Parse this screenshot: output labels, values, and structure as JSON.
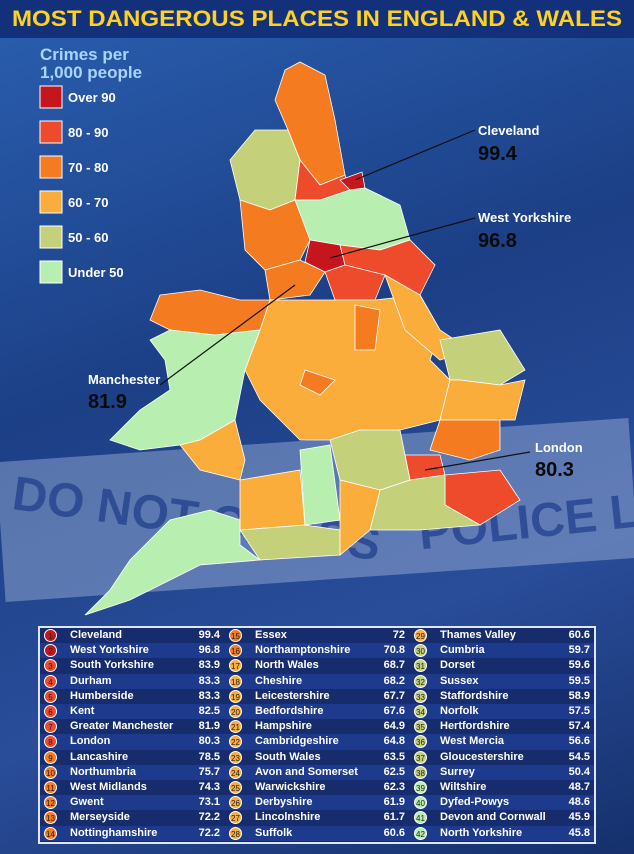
{
  "title": "MOST DANGEROUS PLACES IN ENGLAND & WALES",
  "background_text": [
    "DO NOT CROSS",
    "POLICE LINE"
  ],
  "legend": {
    "title_lines": [
      "Crimes per",
      "1,000 people"
    ],
    "items": [
      {
        "label": "Over 90",
        "color": "#c4161c"
      },
      {
        "label": "80 - 90",
        "color": "#ee4a2c"
      },
      {
        "label": "70 - 80",
        "color": "#f57b20"
      },
      {
        "label": "60 - 70",
        "color": "#fbad3c"
      },
      {
        "label": "50 - 60",
        "color": "#c5d17a"
      },
      {
        "label": "Under 50",
        "color": "#b8eeb0"
      }
    ]
  },
  "callouts": [
    {
      "name": "Cleveland",
      "value": "99.4"
    },
    {
      "name": "West Yorkshire",
      "value": "96.8"
    },
    {
      "name": "Manchester",
      "value": "81.9"
    },
    {
      "name": "London",
      "value": "80.3"
    }
  ],
  "table": {
    "rows": [
      {
        "rank": 1,
        "name": "Cleveland",
        "value": "99.4",
        "color": "#c4161c"
      },
      {
        "rank": 2,
        "name": "West Yorkshire",
        "value": "96.8",
        "color": "#c4161c"
      },
      {
        "rank": 3,
        "name": "South Yorkshire",
        "value": "83.9",
        "color": "#ee4a2c"
      },
      {
        "rank": 4,
        "name": "Durham",
        "value": "83.3",
        "color": "#ee4a2c"
      },
      {
        "rank": 5,
        "name": "Humberside",
        "value": "83.3",
        "color": "#ee4a2c"
      },
      {
        "rank": 6,
        "name": "Kent",
        "value": "82.5",
        "color": "#ee4a2c"
      },
      {
        "rank": 7,
        "name": "Greater Manchester",
        "value": "81.9",
        "color": "#ee4a2c"
      },
      {
        "rank": 8,
        "name": "London",
        "value": "80.3",
        "color": "#ee4a2c"
      },
      {
        "rank": 9,
        "name": "Lancashire",
        "value": "78.5",
        "color": "#f57b20"
      },
      {
        "rank": 10,
        "name": "Northumbria",
        "value": "75.7",
        "color": "#f57b20"
      },
      {
        "rank": 11,
        "name": "West Midlands",
        "value": "74.3",
        "color": "#f57b20"
      },
      {
        "rank": 12,
        "name": "Gwent",
        "value": "73.1",
        "color": "#f57b20"
      },
      {
        "rank": 13,
        "name": "Merseyside",
        "value": "72.2",
        "color": "#f57b20"
      },
      {
        "rank": 14,
        "name": "Nottinghamshire",
        "value": "72.2",
        "color": "#f57b20"
      },
      {
        "rank": 15,
        "name": "Essex",
        "value": "72",
        "color": "#f57b20"
      },
      {
        "rank": 16,
        "name": "Northamptonshire",
        "value": "70.8",
        "color": "#f57b20"
      },
      {
        "rank": 17,
        "name": "North Wales",
        "value": "68.7",
        "color": "#fbad3c"
      },
      {
        "rank": 18,
        "name": "Cheshire",
        "value": "68.2",
        "color": "#fbad3c"
      },
      {
        "rank": 19,
        "name": "Leicestershire",
        "value": "67.7",
        "color": "#fbad3c"
      },
      {
        "rank": 20,
        "name": "Bedfordshire",
        "value": "67.6",
        "color": "#fbad3c"
      },
      {
        "rank": 21,
        "name": "Hampshire",
        "value": "64.9",
        "color": "#fbad3c"
      },
      {
        "rank": 22,
        "name": "Cambridgeshire",
        "value": "64.8",
        "color": "#fbad3c"
      },
      {
        "rank": 23,
        "name": "South Wales",
        "value": "63.5",
        "color": "#fbad3c"
      },
      {
        "rank": 24,
        "name": "Avon and Somerset",
        "value": "62.5",
        "color": "#fbad3c"
      },
      {
        "rank": 25,
        "name": "Warwickshire",
        "value": "62.3",
        "color": "#fbad3c"
      },
      {
        "rank": 26,
        "name": "Derbyshire",
        "value": "61.9",
        "color": "#fbad3c"
      },
      {
        "rank": 27,
        "name": "Lincolnshire",
        "value": "61.7",
        "color": "#fbad3c"
      },
      {
        "rank": 28,
        "name": "Suffolk",
        "value": "60.6",
        "color": "#fbad3c"
      },
      {
        "rank": 29,
        "name": "Thames Valley",
        "value": "60.6",
        "color": "#fbad3c"
      },
      {
        "rank": 30,
        "name": "Cumbria",
        "value": "59.7",
        "color": "#c5d17a"
      },
      {
        "rank": 31,
        "name": "Dorset",
        "value": "59.6",
        "color": "#c5d17a"
      },
      {
        "rank": 32,
        "name": "Sussex",
        "value": "59.5",
        "color": "#c5d17a"
      },
      {
        "rank": 33,
        "name": "Staffordshire",
        "value": "58.9",
        "color": "#c5d17a"
      },
      {
        "rank": 34,
        "name": "Norfolk",
        "value": "57.5",
        "color": "#c5d17a"
      },
      {
        "rank": 35,
        "name": "Hertfordshire",
        "value": "57.4",
        "color": "#c5d17a"
      },
      {
        "rank": 36,
        "name": "West Mercia",
        "value": "56.6",
        "color": "#c5d17a"
      },
      {
        "rank": 37,
        "name": "Gloucestershire",
        "value": "54.5",
        "color": "#c5d17a"
      },
      {
        "rank": 38,
        "name": "Surrey",
        "value": "50.4",
        "color": "#c5d17a"
      },
      {
        "rank": 39,
        "name": "Wiltshire",
        "value": "48.7",
        "color": "#b8eeb0"
      },
      {
        "rank": 40,
        "name": "Dyfed-Powys",
        "value": "48.6",
        "color": "#b8eeb0"
      },
      {
        "rank": 41,
        "name": "Devon and Cornwall",
        "value": "45.9",
        "color": "#b8eeb0"
      },
      {
        "rank": 42,
        "name": "North Yorkshire",
        "value": "45.8",
        "color": "#b8eeb0"
      }
    ]
  }
}
